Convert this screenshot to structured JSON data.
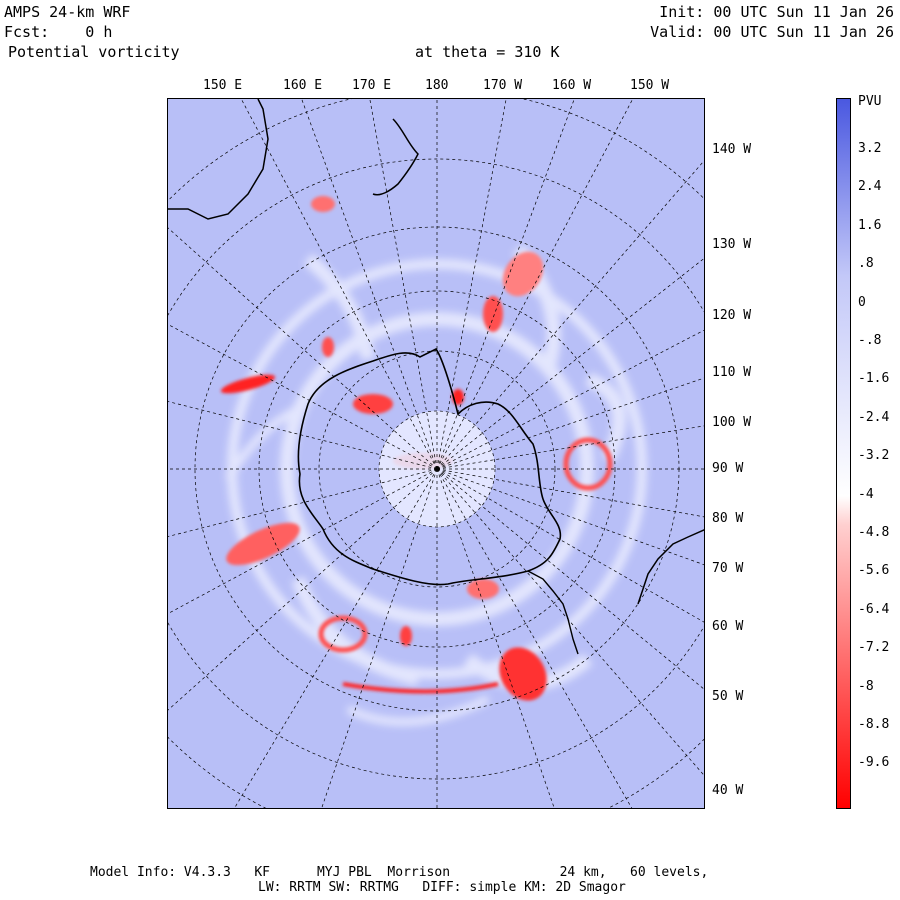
{
  "header": {
    "model": "AMPS 24-km WRF",
    "forecast": "Fcst:    0 h",
    "field": "Potential vorticity",
    "init": "Init: 00 UTC Sun 11 Jan 26",
    "valid": "Valid: 00 UTC Sun 11 Jan 26",
    "level": "at theta = 310 K"
  },
  "top_lon_labels": [
    "150 E",
    "160 E",
    "170 E",
    "180",
    "170 W",
    "160 W",
    "150 W"
  ],
  "right_lon_labels": [
    "140 W",
    "130 W",
    "120 W",
    "110 W",
    "100 W",
    "90 W",
    "80 W",
    "70 W",
    "60 W",
    "50 W",
    "40 W"
  ],
  "colorbar": {
    "unit": "PVU",
    "labels": [
      "3.2",
      "2.4",
      "1.6",
      ".8",
      "0",
      "-.8",
      "-1.6",
      "-2.4",
      "-3.2",
      "-4",
      "-4.8",
      "-5.6",
      "-6.4",
      "-7.2",
      "-8",
      "-8.8",
      "-9.6"
    ],
    "colors": {
      "positive": "#4a58e0",
      "zero": "#ffffff",
      "negative": "#ff0000",
      "background": "#b8bff7"
    }
  },
  "footer": {
    "line1": "Model Info: V4.3.3   KF      MYJ PBL  Morrison              24 km,   60 levels,",
    "line2": "LW: RRTM SW: RRTMG   DIFF: simple KM: 2D Smagor"
  }
}
